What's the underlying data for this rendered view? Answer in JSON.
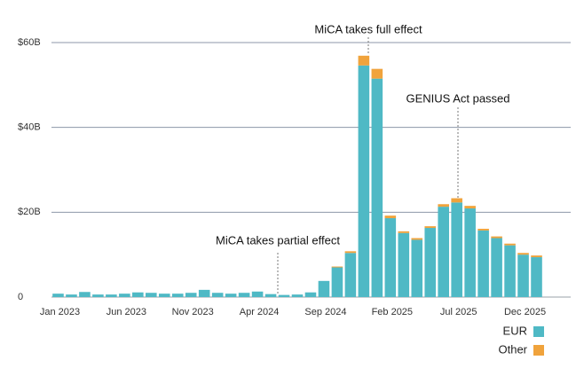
{
  "chart_data": {
    "type": "stacked_bar",
    "categories": [
      "Jan 2023",
      null,
      null,
      null,
      null,
      "Jun 2023",
      null,
      null,
      null,
      null,
      "Nov 2023",
      null,
      null,
      null,
      null,
      "Apr 2024",
      null,
      null,
      null,
      null,
      "Sep 2024",
      null,
      null,
      null,
      null,
      "Feb 2025",
      null,
      null,
      null,
      null,
      "Jul 2025",
      null,
      null,
      null,
      null,
      "Dec 2025",
      null
    ],
    "series": [
      {
        "name": "EUR",
        "color": "#4fb9c5",
        "values": [
          0.8,
          0.6,
          1.2,
          0.6,
          0.6,
          0.8,
          1.1,
          1.0,
          0.8,
          0.8,
          1.0,
          1.7,
          1.0,
          0.8,
          1.0,
          1.3,
          0.7,
          0.5,
          0.6,
          1.1,
          3.8,
          7.0,
          10.4,
          54.6,
          51.5,
          18.6,
          15.1,
          13.5,
          16.3,
          21.3,
          22.3,
          20.9,
          15.7,
          13.9,
          12.2,
          10.0,
          9.4
        ]
      },
      {
        "name": "Other",
        "color": "#f0a33c",
        "values": [
          0,
          0,
          0,
          0,
          0,
          0,
          0,
          0,
          0,
          0,
          0,
          0,
          0,
          0,
          0,
          0,
          0,
          0,
          0,
          0,
          0,
          0.2,
          0.4,
          2.3,
          2.3,
          0.6,
          0.4,
          0.4,
          0.4,
          0.6,
          1.0,
          0.6,
          0.4,
          0.4,
          0.4,
          0.4,
          0.4
        ]
      }
    ],
    "ylim": [
      0,
      60
    ],
    "yticks": [
      0,
      {
        "value": 20,
        "label": "$20B"
      },
      {
        "value": 40,
        "label": "$40B"
      },
      {
        "value": 60,
        "label": "$60B"
      }
    ],
    "grid": true,
    "legend": "bottom-right",
    "annotations": [
      "MiCA takes partial effect",
      "MiCA takes full effect",
      "GENIUS Act passed"
    ]
  }
}
